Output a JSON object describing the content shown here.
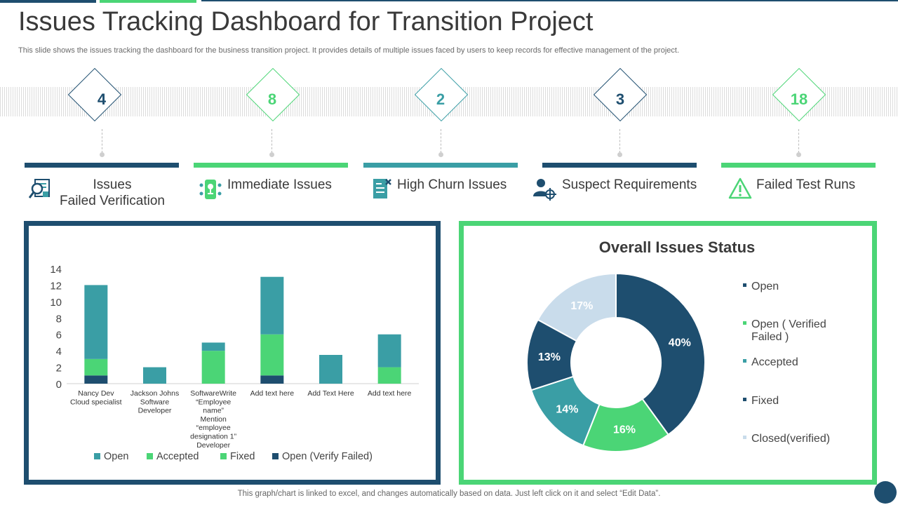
{
  "header": {
    "title": "Issues Tracking Dashboard for Transition Project",
    "subtitle": "This slide shows the issues tracking the dashboard for the business transition project. It provides details of multiple issues faced by users to keep records for effective management of the project."
  },
  "colors": {
    "navy": "#1e4e6f",
    "green": "#4bd576",
    "teal": "#3a9ea5",
    "light_blue": "#c9dceb",
    "text": "#3a3a3a"
  },
  "kpis": [
    {
      "value": "4",
      "label": "Issues Failed Verification",
      "label_lines": [
        "Issues",
        "Failed Verification"
      ],
      "icon": "magnifier-document-icon",
      "color": "#1e4e6f"
    },
    {
      "value": "8",
      "label": "Immediate Issues",
      "icon": "phone-network-icon",
      "color": "#4bd576"
    },
    {
      "value": "2",
      "label": "High Churn Issues",
      "icon": "checklist-icon",
      "color": "#3a9ea5"
    },
    {
      "value": "3",
      "label": "Suspect Requirements",
      "icon": "user-target-icon",
      "color": "#1e4e6f"
    },
    {
      "value": "18",
      "label": "Failed Test Runs",
      "icon": "warning-triangle-icon",
      "color": "#4bd576"
    }
  ],
  "chart_data": [
    {
      "type": "bar",
      "stacked": true,
      "categories": [
        [
          "Nancy Dev",
          "Cloud specialist"
        ],
        [
          "Jackson Johns",
          "Software",
          "Developer"
        ],
        [
          "SoftwareWrite",
          "“Employee",
          "name”",
          "Mention",
          "“employee",
          "designation 1”",
          "Developer"
        ],
        [
          "Add text here"
        ],
        [
          "Add Text Here"
        ],
        [
          "Add text here"
        ]
      ],
      "series": [
        {
          "name": "Open (Verify Failed)",
          "color": "#1e4e6f",
          "values": [
            1,
            0,
            0,
            1,
            0,
            0
          ]
        },
        {
          "name": "Fixed",
          "color": "#4bd576",
          "values": [
            0,
            0,
            0,
            0,
            0,
            0
          ]
        },
        {
          "name": "Accepted",
          "color": "#4bd576",
          "values": [
            2,
            0,
            4,
            5,
            0,
            2
          ]
        },
        {
          "name": "Open",
          "color": "#3a9ea5",
          "values": [
            9,
            2,
            1,
            7,
            3.5,
            4
          ]
        }
      ],
      "legend_order": [
        "Open",
        "Accepted",
        "Fixed",
        "Open (Verify Failed)"
      ],
      "ylim": [
        0,
        14
      ],
      "yticks": [
        0,
        2,
        4,
        6,
        8,
        10,
        12,
        14
      ],
      "legend_position": "bottom",
      "grid": false
    },
    {
      "type": "pie",
      "donut": true,
      "title": "Overall Issues Status",
      "slices": [
        {
          "label": "Open",
          "value": 40,
          "text": "40%",
          "color": "#1e4e6f"
        },
        {
          "label": "Open ( Verified Failed )",
          "value": 16,
          "text": "16%",
          "color": "#4bd576"
        },
        {
          "label": "Accepted",
          "value": 14,
          "text": "14%",
          "color": "#3a9ea5"
        },
        {
          "label": "Fixed",
          "value": 13,
          "text": "13%",
          "color": "#1e4e6f"
        },
        {
          "label": "Closed(verified)",
          "value": 17,
          "text": "17%",
          "color": "#c9dceb"
        }
      ],
      "legend": [
        {
          "lines": [
            "Open"
          ],
          "color": "#1e4e6f"
        },
        {
          "lines": [
            "Open ( Verified",
            "Failed )"
          ],
          "color": "#4bd576"
        },
        {
          "lines": [
            "Accepted"
          ],
          "color": "#3a9ea5"
        },
        {
          "lines": [
            "Fixed"
          ],
          "color": "#1e4e6f"
        },
        {
          "lines": [
            "Closed(verified)"
          ],
          "color": "#c9dceb"
        }
      ],
      "legend_position": "right"
    }
  ],
  "footer": "This graph/chart is linked to excel, and changes automatically based on data. Just left click on it and select “Edit Data”."
}
